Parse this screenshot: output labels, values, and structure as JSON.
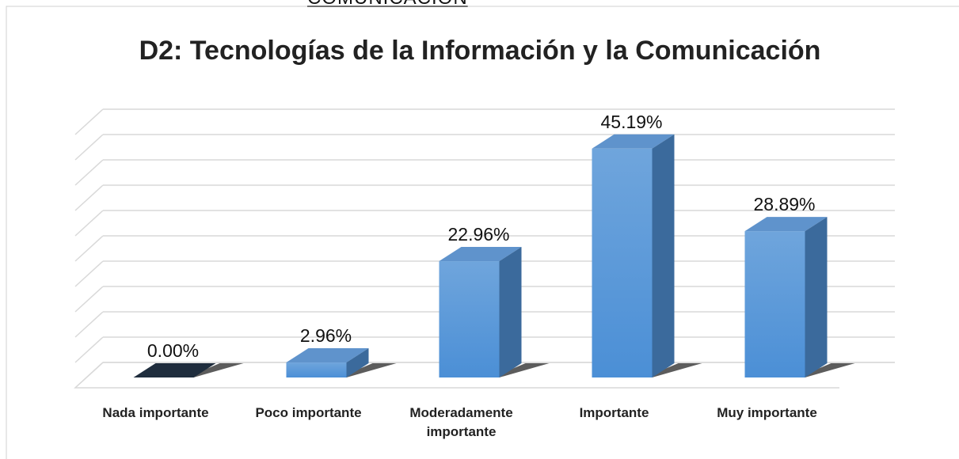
{
  "header": "COMUNICACIÓN",
  "chart_data": {
    "type": "bar3d",
    "title": "D2: Tecnologías de la Información y la Comunicación",
    "categories": [
      "Nada importante",
      "Poco importante",
      "Moderadamente importante",
      "Importante",
      "Muy importante"
    ],
    "values": [
      0,
      2.96,
      22.96,
      45.19,
      28.89
    ],
    "value_labels": [
      "0.00%",
      "2.96%",
      "22.96%",
      "45.19%",
      "28.89%"
    ],
    "color": "#5b9bd5",
    "zero_color": "#1f2d3d",
    "ylim": [
      0,
      50
    ],
    "yticks": [
      0,
      5,
      10,
      15,
      20,
      25,
      30,
      35,
      40,
      45,
      50
    ],
    "grid": true
  }
}
